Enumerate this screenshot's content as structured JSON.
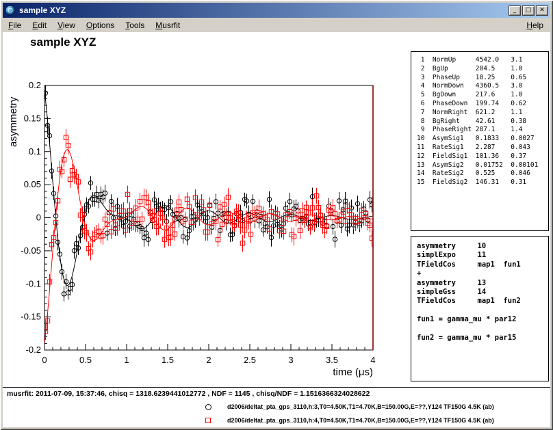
{
  "window": {
    "title": "sample XYZ",
    "controls": [
      {
        "name": "minimize",
        "glyph": "_"
      },
      {
        "name": "maximize",
        "glyph": "□"
      },
      {
        "name": "close",
        "glyph": "✕"
      }
    ]
  },
  "menu": {
    "items": [
      "File",
      "Edit",
      "View",
      "Options",
      "Tools",
      "Musrfit"
    ],
    "help": "Help"
  },
  "canvas": {
    "title": "sample XYZ"
  },
  "param_table": {
    "rows": [
      [
        1,
        "NormUp",
        "4542.0",
        "3.1"
      ],
      [
        2,
        "BgUp",
        "204.5",
        "1.0"
      ],
      [
        3,
        "PhaseUp",
        "18.25",
        "0.65"
      ],
      [
        4,
        "NormDown",
        "4360.5",
        "3.0"
      ],
      [
        5,
        "BgDown",
        "217.6",
        "1.0"
      ],
      [
        6,
        "PhaseDown",
        "199.74",
        "0.62"
      ],
      [
        7,
        "NormRight",
        "621.2",
        "1.1"
      ],
      [
        8,
        "BgRight",
        "42.61",
        "0.38"
      ],
      [
        9,
        "PhaseRight",
        "287.1",
        "1.4"
      ],
      [
        10,
        "AsymSig1",
        "0.1833",
        "0.0027"
      ],
      [
        11,
        "RateSig1",
        "2.287",
        "0.043"
      ],
      [
        12,
        "FieldSig1",
        "101.36",
        "0.37"
      ],
      [
        13,
        "AsymSig2",
        "0.01752",
        "0.00101"
      ],
      [
        14,
        "RateSig2",
        "0.525",
        "0.046"
      ],
      [
        15,
        "FieldSig2",
        "146.31",
        "0.31"
      ]
    ]
  },
  "theory_box": {
    "lines": [
      "asymmetry     10",
      "simplExpo     11",
      "TFieldCos     map1  fun1",
      "+",
      "asymmetry     13",
      "simpleGss     14",
      "TFieldCos     map1  fun2",
      "",
      "fun1 = gamma_mu * par12",
      "",
      "fun2 = gamma_mu * par15"
    ]
  },
  "footer": {
    "status": "musrfit: 2011-07-09, 15:37:46, chisq = 1318.6239441012772 , NDF = 1145 , chisq/NDF = 1.1516366324028622",
    "legend": [
      {
        "marker": "circle",
        "color": "#000000",
        "label": "d2006/deltat_pta_gps_3110,h:3,T0=4.50K,T1=4.70K,B=150.00G,E=??,Y124 TF150G 4.5K (ab)"
      },
      {
        "marker": "square",
        "color": "#ff0000",
        "label": "d2006/deltat_pta_gps_3110,h:4,T0=4.50K,T1=4.70K,B=150.00G,E=??,Y124 TF150G 4.5K (ab)"
      }
    ]
  },
  "chart_data": {
    "type": "scatter",
    "title": "sample XYZ",
    "xlabel": "time (μs)",
    "ylabel": "asymmetry",
    "xlim": [
      0,
      4
    ],
    "ylim": [
      -0.2,
      0.2
    ],
    "xticks": [
      0,
      0.5,
      1,
      1.5,
      2,
      2.5,
      3,
      3.5,
      4
    ],
    "yticks": [
      -0.2,
      -0.15,
      -0.1,
      -0.05,
      0,
      0.05,
      0.1,
      0.15,
      0.2
    ],
    "grid": false,
    "frame_right_color": "#993333",
    "series": [
      {
        "id": "h3",
        "marker": "circle",
        "color": "#000000",
        "seed": 1145,
        "model": {
          "A1": 0.1833,
          "lambda1": 2.287,
          "omega1": 8.632,
          "phase1": 0.3185,
          "A2": 0.01752,
          "sigma2": 0.525,
          "omega2": 12.459,
          "phase2": 0.3185
        },
        "noise_sigma": 0.013,
        "point_error": 0.012,
        "t0": 0.0125,
        "dt": 0.025,
        "tmax": 4.0
      },
      {
        "id": "h4",
        "marker": "square",
        "color": "#ff0000",
        "seed": 3110,
        "model": {
          "A1": 0.1833,
          "lambda1": 2.287,
          "omega1": 8.632,
          "phase1": 3.4861,
          "A2": 0.01752,
          "sigma2": 0.525,
          "omega2": 12.459,
          "phase2": 3.4861
        },
        "noise_sigma": 0.013,
        "point_error": 0.012,
        "t0": 0.0125,
        "dt": 0.025,
        "tmax": 4.0
      }
    ]
  }
}
